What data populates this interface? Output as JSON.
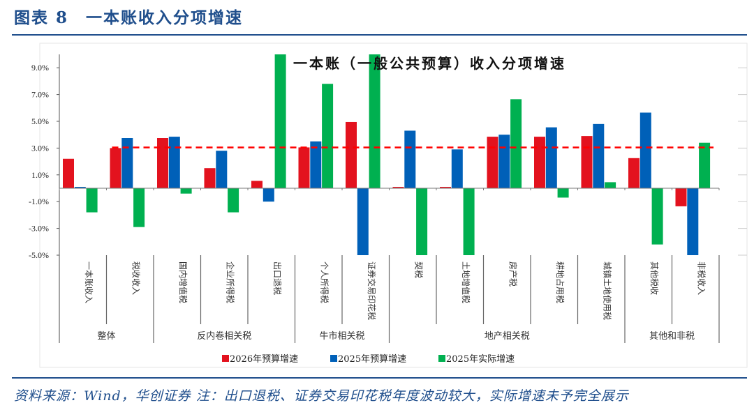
{
  "figure": {
    "title": "图表 8　一本账收入分项增速",
    "source": "资料来源：Wind，华创证券 注：出口退税、证券交易印花税年度波动较大，实际增速未予完全展示"
  },
  "chart_data": {
    "type": "bar",
    "title": "一本账（一般公共预算）收入分项增速",
    "xlabel": "",
    "ylabel": "",
    "ylim": [
      -5,
      10
    ],
    "yticks": [
      "9.0%",
      "7.0%",
      "5.0%",
      "3.0%",
      "1.0%",
      "-1.0%",
      "-3.0%",
      "-5.0%"
    ],
    "ytick_values": [
      9,
      7,
      5,
      3,
      1,
      -1,
      -3,
      -5
    ],
    "grid": false,
    "legend_position": "bottom",
    "categories": [
      "一本账收入",
      "税收收入",
      "国内增值税",
      "企业所得税",
      "出口退税",
      "个人所得税",
      "证券交易印花税",
      "契税",
      "土地增值税",
      "房产税",
      "耕地占用税",
      "城镇土地使用税",
      "其他税收",
      "非税收入"
    ],
    "groups": [
      {
        "label": "整体",
        "span": 2
      },
      {
        "label": "反内卷相关税",
        "span": 3
      },
      {
        "label": "牛市相关税",
        "span": 2
      },
      {
        "label": "地产相关税",
        "span": 5
      },
      {
        "label": "其他和非税",
        "span": 2
      }
    ],
    "series": [
      {
        "name": "2026年预算增速",
        "color": "#e3121e",
        "values": [
          2.2,
          3.0,
          3.75,
          1.5,
          0.55,
          3.05,
          4.95,
          0.1,
          0.1,
          3.85,
          3.85,
          3.9,
          2.25,
          -1.35
        ]
      },
      {
        "name": "2025年预算增速",
        "color": "#0060b8",
        "values": [
          0.1,
          3.75,
          3.85,
          2.8,
          -1.0,
          3.5,
          -5.0,
          4.3,
          2.9,
          4.0,
          4.55,
          4.8,
          5.65,
          -5.0
        ]
      },
      {
        "name": "2025年实际增速",
        "color": "#00b050",
        "values": [
          -1.8,
          -2.9,
          -0.4,
          -1.8,
          10.0,
          7.8,
          10.0,
          -5.0,
          -5.0,
          6.65,
          -0.7,
          0.45,
          -4.2,
          3.4
        ]
      }
    ],
    "reference_line": {
      "value": 3.05,
      "color": "#ff0000",
      "style": "dashed",
      "from_category": "税收收入",
      "to_category": "非税收入"
    }
  }
}
